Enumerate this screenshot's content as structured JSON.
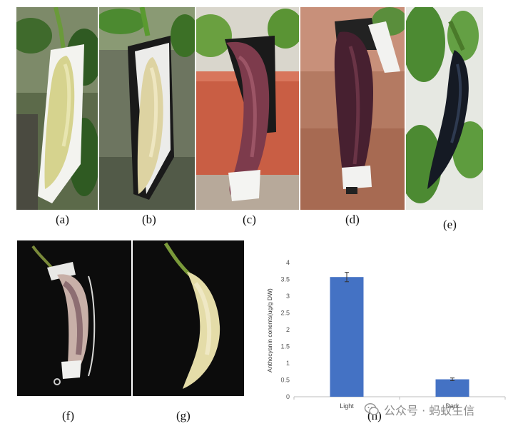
{
  "figure": {
    "panel_labels": [
      "(a)",
      "(b)",
      "(c)",
      "(d)",
      "(e)",
      "(f)",
      "(g)",
      "(h)"
    ],
    "watermark": "公众号 · 蚂蚁生信"
  },
  "chart_data": {
    "type": "bar",
    "title": "",
    "xlabel": "",
    "ylabel": "Anthocyanin conents(ug/g DW)",
    "categories": [
      "Light",
      "Dark"
    ],
    "series": [
      {
        "values": [
          3.57,
          0.52
        ],
        "error": [
          0.14,
          0.04
        ]
      }
    ],
    "ylim": [
      0,
      4
    ],
    "yticks": [
      0,
      0.5,
      1,
      1.5,
      2,
      2.5,
      3,
      3.5,
      4
    ],
    "ytick_labels": [
      "0",
      "0.5",
      "1",
      "1.5",
      "2",
      "2.5",
      "3",
      "3.5",
      "4"
    ],
    "bar_color": "#4472c4",
    "grid": false
  }
}
